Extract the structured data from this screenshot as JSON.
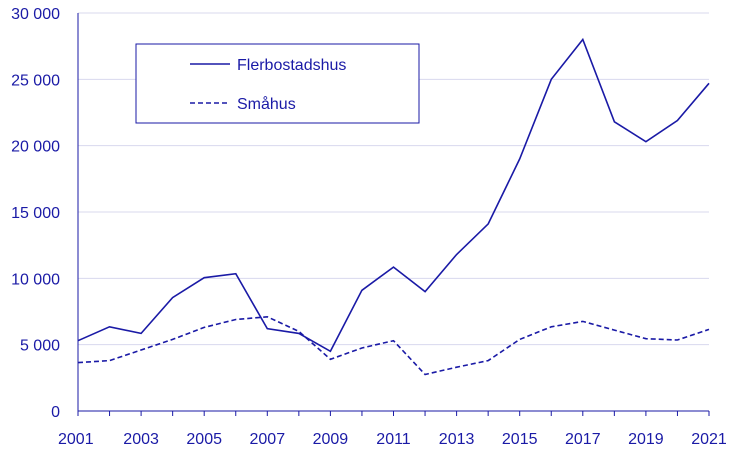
{
  "chart_data": {
    "type": "line",
    "title": "",
    "xlabel": "",
    "ylabel": "",
    "x": [
      2001,
      2002,
      2003,
      2004,
      2005,
      2006,
      2007,
      2008,
      2009,
      2010,
      2011,
      2012,
      2013,
      2014,
      2015,
      2016,
      2017,
      2018,
      2019,
      2020,
      2021
    ],
    "x_tick_labels": [
      "2001",
      "2003",
      "2005",
      "2007",
      "2009",
      "2011",
      "2013",
      "2015",
      "2017",
      "2019",
      "2021"
    ],
    "x_tick_values": [
      2001,
      2003,
      2005,
      2007,
      2009,
      2011,
      2013,
      2015,
      2017,
      2019,
      2021
    ],
    "y_tick_labels": [
      "0",
      "5 000",
      "10 000",
      "15 000",
      "20 000",
      "25 000",
      "30 000"
    ],
    "y_tick_values": [
      0,
      5000,
      10000,
      15000,
      20000,
      25000,
      30000
    ],
    "ylim": [
      0,
      30000
    ],
    "xlim": [
      2001,
      2021
    ],
    "grid": "horizontal",
    "legend_placement": "top-left",
    "series": [
      {
        "name": "Flerbostadshus",
        "style": "solid",
        "color": "#1a1aa6",
        "values": [
          5300,
          6350,
          5850,
          8550,
          10050,
          10350,
          6200,
          5850,
          4500,
          9100,
          10850,
          9000,
          11800,
          14100,
          19000,
          25000,
          28000,
          21800,
          20300,
          21900,
          24700
        ]
      },
      {
        "name": "Småhus",
        "style": "dashed",
        "color": "#1a1aa6",
        "values": [
          3650,
          3800,
          4600,
          5400,
          6300,
          6900,
          7100,
          6000,
          3900,
          4750,
          5300,
          2750,
          3300,
          3800,
          5400,
          6350,
          6750,
          6100,
          5450,
          5350,
          6150
        ]
      }
    ]
  }
}
